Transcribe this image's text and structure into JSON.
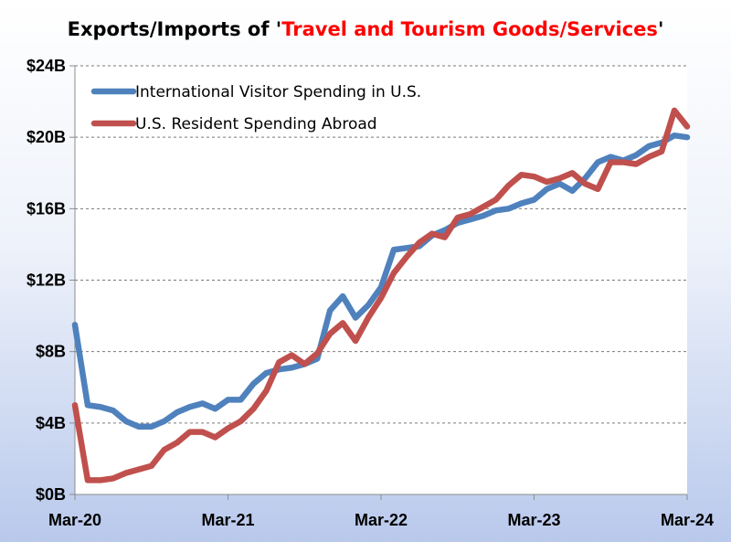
{
  "chart_data": {
    "type": "line",
    "title_prefix": "Exports/Imports of '",
    "title_highlight": "Travel and Tourism Goods/Services",
    "title_suffix": "'",
    "title_highlight_color": "#ff0000",
    "xlabel": "",
    "ylabel": "",
    "ylim": [
      0,
      24
    ],
    "y_ticks": [
      0,
      4,
      8,
      12,
      16,
      20,
      24
    ],
    "y_tick_labels": [
      "$0B",
      "$4B",
      "$8B",
      "$12B",
      "$16B",
      "$20B",
      "$24B"
    ],
    "x_ticks": [
      0,
      12,
      24,
      36,
      48
    ],
    "x_tick_labels": [
      "Mar-20",
      "Mar-21",
      "Mar-22",
      "Mar-23",
      "Mar-24"
    ],
    "grid": {
      "horizontal": true,
      "style": "dashed"
    },
    "legend_position": "top-left",
    "x_months_from_Mar_2020": [
      0,
      1,
      2,
      3,
      4,
      5,
      6,
      7,
      8,
      9,
      10,
      11,
      12,
      13,
      14,
      15,
      16,
      17,
      18,
      19,
      20,
      21,
      22,
      23,
      24,
      25,
      26,
      27,
      28,
      29,
      30,
      31,
      32,
      33,
      34,
      35,
      36,
      37,
      38,
      39,
      40,
      41,
      42,
      43,
      44,
      45,
      46,
      47,
      48
    ],
    "series": [
      {
        "name": "International Visitor Spending in U.S.",
        "color": "#4f81bd",
        "values": [
          9.5,
          5.0,
          4.9,
          4.7,
          4.1,
          3.8,
          3.8,
          4.1,
          4.6,
          4.9,
          5.1,
          4.8,
          5.3,
          5.3,
          6.2,
          6.8,
          7.0,
          7.1,
          7.3,
          7.6,
          10.3,
          11.1,
          9.9,
          10.6,
          11.6,
          13.7,
          13.8,
          13.9,
          14.5,
          14.8,
          15.2,
          15.4,
          15.6,
          15.9,
          16.0,
          16.3,
          16.5,
          17.1,
          17.4,
          17.0,
          17.7,
          18.6,
          18.9,
          18.7,
          19.0,
          19.5,
          19.7,
          20.1,
          20.0
        ]
      },
      {
        "name": "U.S. Resident Spending Abroad",
        "color": "#c0504d",
        "values": [
          5.0,
          0.8,
          0.8,
          0.9,
          1.2,
          1.4,
          1.6,
          2.5,
          2.9,
          3.5,
          3.5,
          3.2,
          3.7,
          4.1,
          4.8,
          5.8,
          7.4,
          7.8,
          7.3,
          7.9,
          9.0,
          9.6,
          8.6,
          9.9,
          11.0,
          12.4,
          13.3,
          14.1,
          14.6,
          14.4,
          15.5,
          15.7,
          16.1,
          16.5,
          17.3,
          17.9,
          17.8,
          17.5,
          17.7,
          18.0,
          17.4,
          17.1,
          18.6,
          18.6,
          18.5,
          18.9,
          19.2,
          21.5,
          20.6
        ]
      }
    ]
  }
}
